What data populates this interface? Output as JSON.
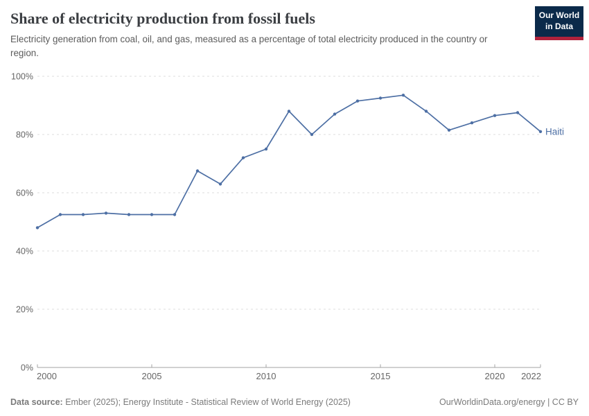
{
  "header": {
    "title": "Share of electricity production from fossil fuels",
    "subtitle": "Electricity generation from coal, oil, and gas, measured as a percentage of total electricity produced in the country or region.",
    "logo": {
      "line1": "Our World",
      "line2": "in Data",
      "bg_color": "#0b2a4a",
      "stripe_color": "#b0223c"
    }
  },
  "chart_data": {
    "type": "line",
    "title": "Share of electricity production from fossil fuels",
    "x": [
      2000,
      2001,
      2002,
      2003,
      2004,
      2005,
      2006,
      2007,
      2008,
      2009,
      2010,
      2011,
      2012,
      2013,
      2014,
      2015,
      2016,
      2017,
      2018,
      2019,
      2020,
      2021,
      2022
    ],
    "series": [
      {
        "name": "Haiti",
        "color": "#4d6fa4",
        "values": [
          48,
          52.5,
          52.5,
          53,
          52.5,
          52.5,
          52.5,
          67.5,
          63,
          72,
          75,
          88,
          80,
          87,
          91.5,
          92.5,
          93.5,
          88,
          81.5,
          84,
          86.5,
          87.5,
          81
        ]
      }
    ],
    "entity_label": "Haiti",
    "xlabel": "",
    "ylabel": "",
    "xlim": [
      2000,
      2022
    ],
    "ylim": [
      0,
      100
    ],
    "xticks": [
      2000,
      2005,
      2010,
      2015,
      2020,
      2022
    ],
    "yticks": [
      0,
      20,
      40,
      60,
      80,
      100
    ],
    "ytick_suffix": "%",
    "grid": "horizontal-dashed",
    "legend_position": "end-of-line",
    "theme": {
      "grid_color": "#dcdcdc",
      "axis_color": "#a3a3a3",
      "tick_label_color": "#666666",
      "marker_radius": 2.2,
      "line_width": 1.7
    }
  },
  "footer": {
    "datasource_label": "Data source:",
    "datasource_text": "Ember (2025); Energy Institute - Statistical Review of World Energy (2025)",
    "credit": "OurWorldinData.org/energy | CC BY"
  }
}
